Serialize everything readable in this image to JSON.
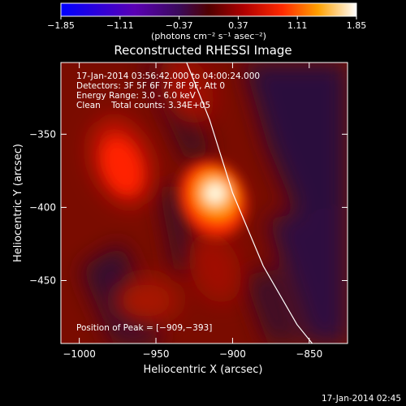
{
  "chart_data": {
    "type": "heatmap",
    "title": "Reconstructed RHESSI Image",
    "xlabel": "Heliocentric X (arcsec)",
    "ylabel": "Heliocentric Y (arcsec)",
    "xlim": [
      -1012,
      -825
    ],
    "ylim": [
      -493,
      -301
    ],
    "x_ticks": [
      -1000,
      -950,
      -900,
      -850
    ],
    "x_tick_labels": [
      "−1000",
      "−950",
      "−900",
      "−850"
    ],
    "y_ticks": [
      -350,
      -400,
      -450
    ],
    "y_tick_labels": [
      "−350",
      "−400",
      "−450"
    ],
    "colorbar": {
      "range": [
        -1.85,
        1.85
      ],
      "ticks": [
        -1.85,
        -1.11,
        -0.37,
        0.37,
        1.11,
        1.85
      ],
      "tick_labels": [
        "−1.85",
        "−1.11",
        "−0.37",
        "0.37",
        "1.11",
        "1.85"
      ],
      "unit_label": "(photons cm⁻² s⁻¹ asec⁻²)",
      "colormap": "blue-purple-red-yellow-white"
    },
    "info_lines": [
      "17-Jan-2014 03:56:42.000 to 04:00:24.000",
      "Detectors: 3F 5F 6F 7F 8F 9F, Att 0",
      "Energy Range: 3.0 - 6.0 keV",
      "Clean    Total counts: 3.34E+05"
    ],
    "peak_label": "Position of Peak = [−909,−393]",
    "peak": {
      "x": -909,
      "y": -393,
      "value": 1.85
    },
    "secondary_source": {
      "x": -970,
      "y": -370,
      "value": 1.1
    },
    "limb_curve": [
      [
        -930,
        -301
      ],
      [
        -915,
        -340
      ],
      [
        -900,
        -390
      ],
      [
        -880,
        -440
      ],
      [
        -858,
        -480
      ],
      [
        -848,
        -493
      ]
    ]
  },
  "footer_timestamp": "17-Jan-2014 02:45"
}
